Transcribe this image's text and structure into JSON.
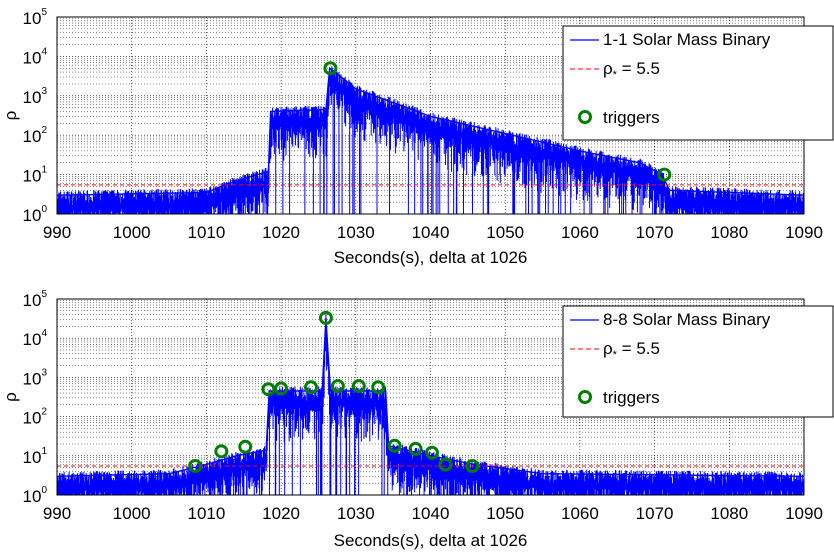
{
  "chart_data": [
    {
      "type": "line",
      "xlabel": "Seconds(s), delta at 1026",
      "ylabel": "ρ",
      "xlim": [
        990,
        1090
      ],
      "x_ticks": [
        "990",
        "1000",
        "1010",
        "1020",
        "1030",
        "1040",
        "1050",
        "1060",
        "1070",
        "1080",
        "1090"
      ],
      "ylim": [
        1,
        100000
      ],
      "yscale": "log",
      "y_ticks": [
        {
          "base": "10",
          "exp": "0"
        },
        {
          "base": "10",
          "exp": "1"
        },
        {
          "base": "10",
          "exp": "2"
        },
        {
          "base": "10",
          "exp": "3"
        },
        {
          "base": "10",
          "exp": "4"
        },
        {
          "base": "10",
          "exp": "5"
        }
      ],
      "grid": true,
      "legend_position": "top-right",
      "colors": {
        "signal": "#0000ff",
        "threshold": "#ff0000",
        "trigger": "#008000"
      },
      "legend": {
        "signal": "1-1 Solar Mass Binary",
        "threshold_prefix": "ρ",
        "threshold_sub": "*",
        "threshold_suffix": " = 5.5",
        "triggers": "triggers"
      },
      "threshold": 5.5,
      "signal_envelope": [
        {
          "x": 990,
          "y": 3
        },
        {
          "x": 1010,
          "y": 3.5
        },
        {
          "x": 1013,
          "y": 6
        },
        {
          "x": 1016,
          "y": 9
        },
        {
          "x": 1018.3,
          "y": 12
        },
        {
          "x": 1018.6,
          "y": 400
        },
        {
          "x": 1026,
          "y": 450
        },
        {
          "x": 1026.5,
          "y": 5000
        },
        {
          "x": 1030,
          "y": 1500
        },
        {
          "x": 1040,
          "y": 300
        },
        {
          "x": 1050,
          "y": 110
        },
        {
          "x": 1060,
          "y": 40
        },
        {
          "x": 1068,
          "y": 20
        },
        {
          "x": 1071,
          "y": 10
        },
        {
          "x": 1072,
          "y": 4
        },
        {
          "x": 1090,
          "y": 3
        }
      ],
      "triggers": [
        {
          "x": 1026.6,
          "y": 5000
        },
        {
          "x": 1071.3,
          "y": 10
        }
      ]
    },
    {
      "type": "line",
      "xlabel": "Seconds(s), delta at 1026",
      "ylabel": "ρ",
      "xlim": [
        990,
        1090
      ],
      "x_ticks": [
        "990",
        "1000",
        "1010",
        "1020",
        "1030",
        "1040",
        "1050",
        "1060",
        "1070",
        "1080",
        "1090"
      ],
      "ylim": [
        1,
        100000
      ],
      "yscale": "log",
      "y_ticks": [
        {
          "base": "10",
          "exp": "0"
        },
        {
          "base": "10",
          "exp": "1"
        },
        {
          "base": "10",
          "exp": "2"
        },
        {
          "base": "10",
          "exp": "3"
        },
        {
          "base": "10",
          "exp": "4"
        },
        {
          "base": "10",
          "exp": "5"
        }
      ],
      "grid": true,
      "legend_position": "top-right",
      "colors": {
        "signal": "#0000ff",
        "threshold": "#ff0000",
        "trigger": "#008000"
      },
      "legend": {
        "signal": "8-8 Solar Mass Binary",
        "threshold_prefix": "ρ",
        "threshold_sub": "*",
        "threshold_suffix": " = 5.5",
        "triggers": "triggers"
      },
      "threshold": 5.5,
      "signal_envelope": [
        {
          "x": 990,
          "y": 3
        },
        {
          "x": 1005,
          "y": 3.5
        },
        {
          "x": 1010,
          "y": 6
        },
        {
          "x": 1014,
          "y": 10
        },
        {
          "x": 1018,
          "y": 14
        },
        {
          "x": 1018.4,
          "y": 450
        },
        {
          "x": 1025.5,
          "y": 450
        },
        {
          "x": 1026,
          "y": 33000
        },
        {
          "x": 1026.6,
          "y": 450
        },
        {
          "x": 1034,
          "y": 450
        },
        {
          "x": 1034.4,
          "y": 18
        },
        {
          "x": 1040,
          "y": 10
        },
        {
          "x": 1046,
          "y": 6
        },
        {
          "x": 1055,
          "y": 3.5
        },
        {
          "x": 1090,
          "y": 3
        }
      ],
      "triggers": [
        {
          "x": 1008.5,
          "y": 5.5
        },
        {
          "x": 1012,
          "y": 13
        },
        {
          "x": 1015.2,
          "y": 17
        },
        {
          "x": 1018.3,
          "y": 500
        },
        {
          "x": 1020,
          "y": 520
        },
        {
          "x": 1024,
          "y": 560
        },
        {
          "x": 1026,
          "y": 33000
        },
        {
          "x": 1027.6,
          "y": 600
        },
        {
          "x": 1030.4,
          "y": 600
        },
        {
          "x": 1033,
          "y": 560
        },
        {
          "x": 1035.2,
          "y": 18
        },
        {
          "x": 1038,
          "y": 15
        },
        {
          "x": 1040.2,
          "y": 12
        },
        {
          "x": 1042,
          "y": 6
        },
        {
          "x": 1045.6,
          "y": 5.5
        }
      ]
    }
  ]
}
